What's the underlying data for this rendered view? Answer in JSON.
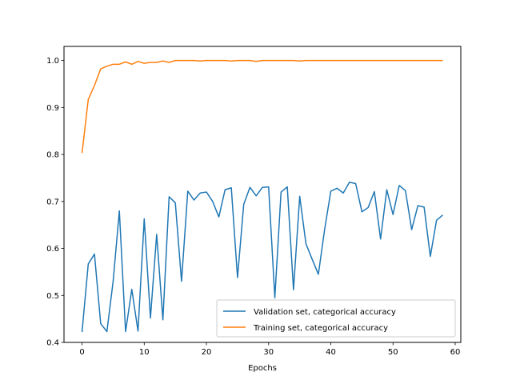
{
  "chart_data": {
    "type": "line",
    "title": "",
    "xlabel": "Epochs",
    "ylabel": "",
    "xlim": [
      -2.9,
      60.9
    ],
    "ylim": [
      0.4,
      1.03
    ],
    "xticks": [
      0,
      10,
      20,
      30,
      40,
      50,
      60
    ],
    "yticks": [
      0.4,
      0.5,
      0.6,
      0.7,
      0.8,
      0.9,
      1.0
    ],
    "ytick_labels": [
      "0.4",
      "0.5",
      "0.6",
      "0.7",
      "0.8",
      "0.9",
      "1.0"
    ],
    "grid": false,
    "legend_position": "lower-right",
    "x": [
      0,
      1,
      2,
      3,
      4,
      5,
      6,
      7,
      8,
      9,
      10,
      11,
      12,
      13,
      14,
      15,
      16,
      17,
      18,
      19,
      20,
      21,
      22,
      23,
      24,
      25,
      26,
      27,
      28,
      29,
      30,
      31,
      32,
      33,
      34,
      35,
      36,
      37,
      38,
      39,
      40,
      41,
      42,
      43,
      44,
      45,
      46,
      47,
      48,
      49,
      50,
      51,
      52,
      53,
      54,
      55,
      56,
      57,
      58
    ],
    "series": [
      {
        "name": "Validation set, categorical accuracy",
        "color": "#1f77b4",
        "values": [
          0.422,
          0.567,
          0.588,
          0.44,
          0.423,
          0.53,
          0.68,
          0.423,
          0.513,
          0.424,
          0.663,
          0.452,
          0.63,
          0.448,
          0.71,
          0.697,
          0.53,
          0.722,
          0.703,
          0.718,
          0.72,
          0.7,
          0.667,
          0.725,
          0.729,
          0.538,
          0.694,
          0.73,
          0.712,
          0.73,
          0.731,
          0.495,
          0.72,
          0.731,
          0.512,
          0.711,
          0.61,
          0.577,
          0.545,
          0.64,
          0.722,
          0.728,
          0.718,
          0.741,
          0.738,
          0.678,
          0.687,
          0.721,
          0.62,
          0.725,
          0.672,
          0.734,
          0.723,
          0.64,
          0.691,
          0.688,
          0.583,
          0.66,
          0.671
        ]
      },
      {
        "name": "Training set, categorical accuracy",
        "color": "#ff7f0e",
        "values": [
          0.803,
          0.917,
          0.947,
          0.982,
          0.988,
          0.992,
          0.992,
          0.997,
          0.992,
          0.998,
          0.994,
          0.996,
          0.996,
          0.999,
          0.996,
          1.0,
          1.0,
          1.0,
          1.0,
          0.999,
          1.0,
          1.0,
          1.0,
          1.0,
          0.999,
          1.0,
          1.0,
          1.0,
          0.998,
          1.0,
          1.0,
          1.0,
          1.0,
          1.0,
          1.0,
          0.999,
          1.0,
          1.0,
          1.0,
          1.0,
          1.0,
          1.0,
          1.0,
          1.0,
          1.0,
          1.0,
          1.0,
          1.0,
          1.0,
          1.0,
          1.0,
          1.0,
          1.0,
          1.0,
          1.0,
          1.0,
          1.0,
          1.0,
          1.0
        ]
      }
    ]
  }
}
